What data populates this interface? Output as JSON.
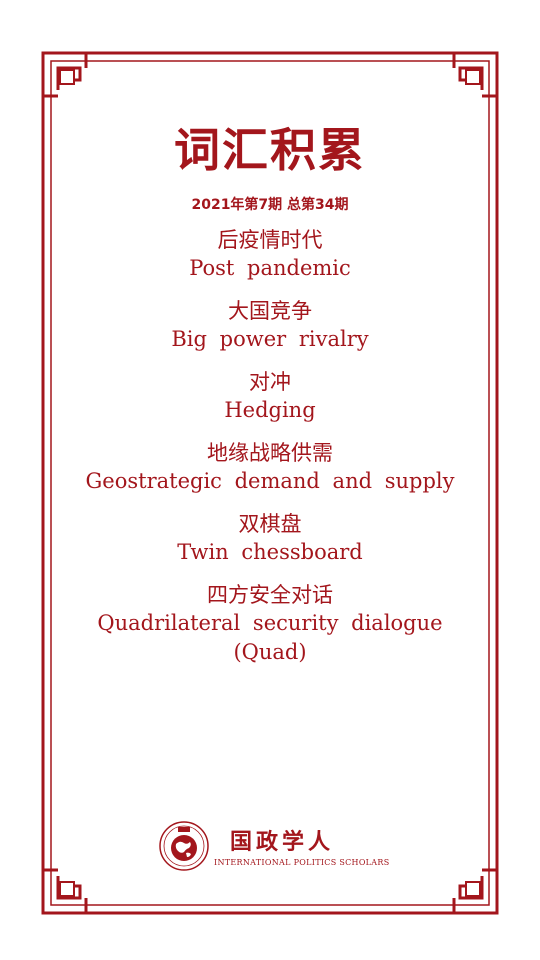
{
  "title": "词汇积累",
  "issue": "2021年第7期  总第34期",
  "terms": [
    {
      "zh": "后疫情时代",
      "en": "Post pandemic"
    },
    {
      "zh": "大国竞争",
      "en": "Big power rivalry"
    },
    {
      "zh": "对冲",
      "en": "Hedging"
    },
    {
      "zh": "地缘战略供需",
      "en": "Geostrategic demand and supply"
    },
    {
      "zh": "双棋盘",
      "en": "Twin chessboard"
    },
    {
      "zh": "四方安全对话",
      "en": "Quadrilateral security dialogue (Quad)"
    }
  ],
  "brand": {
    "name_zh": "国政学人",
    "name_en": "INTERNATIONAL POLITICS SCHOLARS",
    "logo_icon": "globe-seal-icon"
  },
  "colors": {
    "accent": "#a3161c",
    "background": "#ffffff"
  }
}
